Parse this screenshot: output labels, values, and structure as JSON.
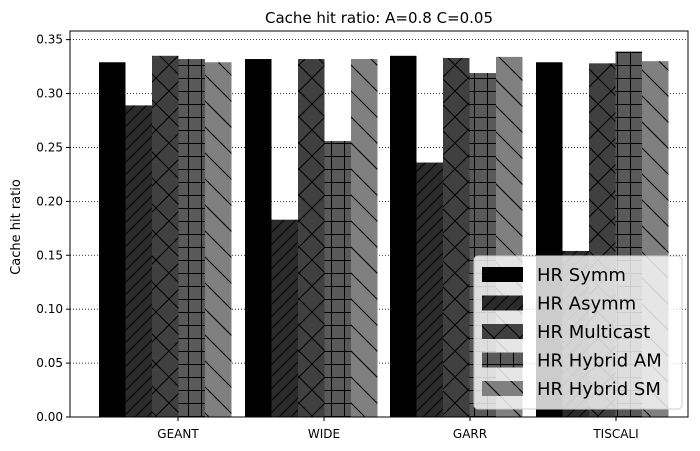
{
  "chart_data": {
    "type": "bar",
    "title": "Cache hit ratio: A=0.8 C=0.05",
    "xlabel": "",
    "ylabel": "Cache hit ratio",
    "ylim": [
      0,
      0.358
    ],
    "yticks": [
      "0.00",
      "0.05",
      "0.10",
      "0.15",
      "0.20",
      "0.25",
      "0.30",
      "0.35"
    ],
    "grid": "y-dotted",
    "legend_position": "lower-right",
    "categories": [
      "GEANT",
      "WIDE",
      "GARR",
      "TISCALI"
    ],
    "series": [
      {
        "name": "HR Symm",
        "color": "#000000",
        "hatch": "none",
        "values": [
          0.329,
          0.332,
          0.335,
          0.329
        ]
      },
      {
        "name": "HR Asymm",
        "color": "#2b2b2b",
        "hatch": "diagonal-up",
        "values": [
          0.289,
          0.183,
          0.236,
          0.154
        ]
      },
      {
        "name": "HR Multicast",
        "color": "#404040",
        "hatch": "cross",
        "values": [
          0.335,
          0.332,
          0.333,
          0.328
        ]
      },
      {
        "name": "HR Hybrid AM",
        "color": "#595959",
        "hatch": "grid",
        "values": [
          0.332,
          0.256,
          0.319,
          0.339
        ]
      },
      {
        "name": "HR Hybrid SM",
        "color": "#808080",
        "hatch": "diagonal-down",
        "values": [
          0.329,
          0.332,
          0.334,
          0.33
        ]
      }
    ]
  }
}
